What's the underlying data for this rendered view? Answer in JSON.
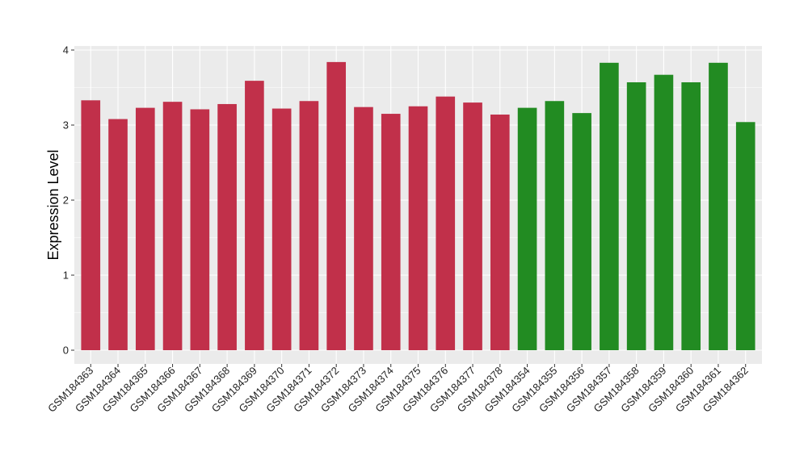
{
  "chart_data": {
    "type": "bar",
    "title": "",
    "xlabel": "",
    "ylabel": "Expression Level",
    "ylim": [
      0,
      4
    ],
    "yticks": [
      "0",
      "1",
      "2",
      "3",
      "4"
    ],
    "grid": true,
    "colors": {
      "panel_background": "#EBEBEB",
      "gridline": "#FFFFFF",
      "group_a": "#C1304A",
      "group_b": "#228B22"
    },
    "categories": [
      "GSM184363",
      "GSM184364",
      "GSM184365",
      "GSM184366",
      "GSM184367",
      "GSM184368",
      "GSM184369",
      "GSM184370",
      "GSM184371",
      "GSM184372",
      "GSM184373",
      "GSM184374",
      "GSM184375",
      "GSM184376",
      "GSM184377",
      "GSM184378",
      "GSM184354",
      "GSM184355",
      "GSM184356",
      "GSM184357",
      "GSM184358",
      "GSM184359",
      "GSM184360",
      "GSM184361",
      "GSM184362"
    ],
    "values": [
      3.33,
      3.08,
      3.23,
      3.31,
      3.21,
      3.28,
      3.59,
      3.22,
      3.32,
      3.84,
      3.24,
      3.15,
      3.25,
      3.38,
      3.3,
      3.14,
      3.23,
      3.32,
      3.16,
      3.83,
      3.57,
      3.67,
      3.57,
      3.83,
      3.04
    ],
    "groups": [
      "group_a",
      "group_a",
      "group_a",
      "group_a",
      "group_a",
      "group_a",
      "group_a",
      "group_a",
      "group_a",
      "group_a",
      "group_a",
      "group_a",
      "group_a",
      "group_a",
      "group_a",
      "group_a",
      "group_b",
      "group_b",
      "group_b",
      "group_b",
      "group_b",
      "group_b",
      "group_b",
      "group_b",
      "group_b"
    ]
  }
}
